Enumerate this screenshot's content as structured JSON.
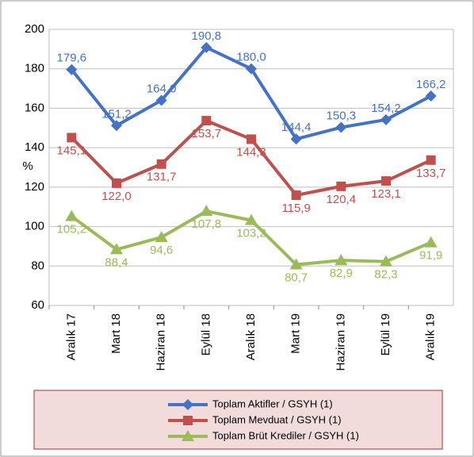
{
  "chart_data": {
    "type": "line",
    "ylabel": "%",
    "categories": [
      "Aralık 17",
      "Mart 18",
      "Haziran 18",
      "Eylül 18",
      "Aralık 18",
      "Mart 19",
      "Haziran 19",
      "Eylül 19",
      "Aralık 19"
    ],
    "series": [
      {
        "name": "Toplam Aktifler / GSYH (1)",
        "color": "#4472c4",
        "marker": "diamond",
        "values": [
          179.6,
          151.2,
          164.0,
          190.8,
          180.0,
          144.4,
          150.3,
          154.2,
          166.2
        ],
        "value_labels": [
          "179,6",
          "151,2",
          "164,0",
          "190,8",
          "180,0",
          "144,4",
          "150,3",
          "154,2",
          "166,2"
        ]
      },
      {
        "name": "Toplam Mevduat / GSYH (1)",
        "color": "#c0504d",
        "marker": "square",
        "values": [
          145.1,
          122.0,
          131.7,
          153.7,
          144.3,
          115.9,
          120.4,
          123.1,
          133.7
        ],
        "value_labels": [
          "145,1",
          "122,0",
          "131,7",
          "153,7",
          "144,3",
          "115,9",
          "120,4",
          "123,1",
          "133,7"
        ]
      },
      {
        "name": "Toplam Brüt Krediler / GSYH (1)",
        "color": "#9bbb59",
        "marker": "triangle",
        "values": [
          105.2,
          88.4,
          94.6,
          107.8,
          103.2,
          80.7,
          82.9,
          82.3,
          91.9
        ],
        "value_labels": [
          "105,2",
          "88,4",
          "94,6",
          "107,8",
          "103,2",
          "80,7",
          "82,9",
          "82,3",
          "91,9"
        ]
      }
    ],
    "ylim": [
      60,
      200
    ],
    "yticks": [
      60,
      80,
      100,
      120,
      140,
      160,
      180,
      200
    ],
    "grid": true,
    "legend": "bottom"
  }
}
